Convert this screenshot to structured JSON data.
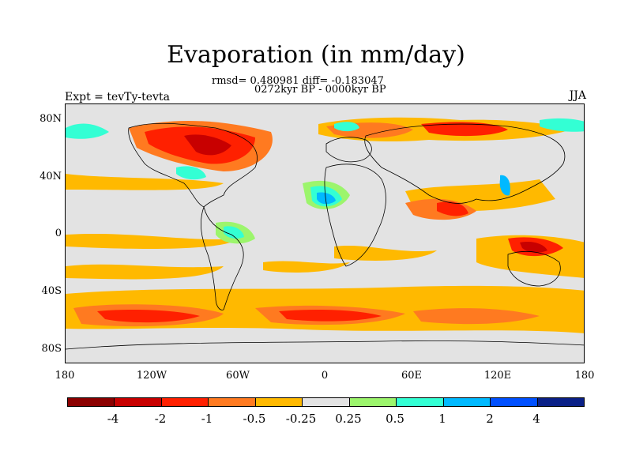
{
  "title": "Evaporation (in mm/day)",
  "stats_line": "rmsd= 0.480981 diff= -0.183047",
  "period_line": "0272kyr BP - 0000kyr BP",
  "experiment": "Expt = tevTy-tevta",
  "season": "JJA",
  "lat_labels": [
    "80N",
    "40N",
    "0",
    "40S",
    "80S"
  ],
  "lon_labels": [
    "180",
    "120W",
    "60W",
    "0",
    "60E",
    "120E",
    "180"
  ],
  "colorbar": {
    "colors": [
      "#8b0000",
      "#c80000",
      "#ff2000",
      "#ff7a20",
      "#ffb900",
      "#e3e3e3",
      "#9cf56c",
      "#33ffd4",
      "#00b9ff",
      "#0050ff",
      "#0a2087"
    ],
    "labels": [
      "-4",
      "-2",
      "-1",
      "-0.5",
      "-0.25",
      "0.25",
      "0.5",
      "1",
      "2",
      "4"
    ]
  },
  "map": {
    "ocean_color": "#e3e3e3",
    "coast_color": "#000000"
  }
}
